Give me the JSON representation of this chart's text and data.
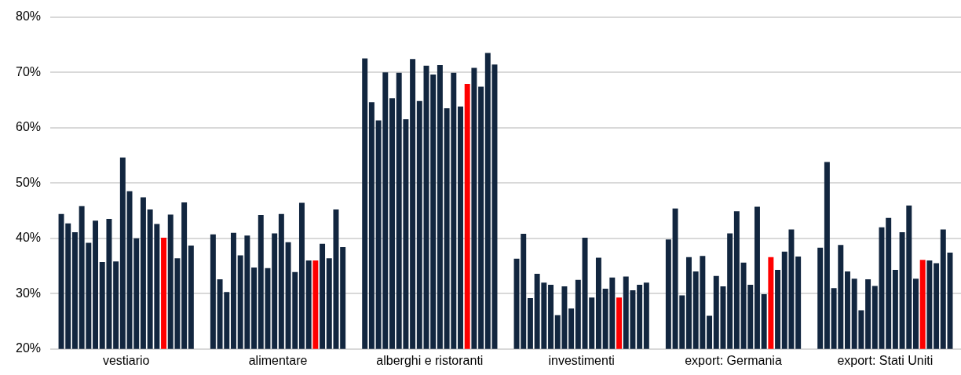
{
  "chart_data": {
    "type": "bar",
    "categories": [
      "vestiario",
      "alimentare",
      "alberghi e ristoranti",
      "investimenti",
      "export: Germania",
      "export: Stati Uniti"
    ],
    "series": [
      {
        "color": "#12263f",
        "values": [
          44.4,
          40.7,
          72.5,
          36.3,
          39.8,
          38.3
        ]
      },
      {
        "color": "#12263f",
        "values": [
          42.7,
          32.6,
          64.6,
          40.8,
          45.4,
          53.8
        ]
      },
      {
        "color": "#12263f",
        "values": [
          41.1,
          30.3,
          61.3,
          29.2,
          29.7,
          31.0
        ]
      },
      {
        "color": "#12263f",
        "values": [
          45.8,
          41.0,
          70.0,
          33.6,
          36.6,
          38.8
        ]
      },
      {
        "color": "#12263f",
        "values": [
          39.2,
          36.9,
          65.3,
          32.0,
          34.0,
          34.0
        ]
      },
      {
        "color": "#12263f",
        "values": [
          43.2,
          40.5,
          69.9,
          31.6,
          36.8,
          32.7
        ]
      },
      {
        "color": "#12263f",
        "values": [
          35.7,
          34.7,
          61.5,
          26.1,
          26.0,
          27.0
        ]
      },
      {
        "color": "#12263f",
        "values": [
          43.5,
          44.2,
          72.4,
          31.3,
          33.2,
          32.6
        ]
      },
      {
        "color": "#12263f",
        "values": [
          35.8,
          34.6,
          64.8,
          27.3,
          31.3,
          31.4
        ]
      },
      {
        "color": "#12263f",
        "values": [
          54.6,
          40.9,
          71.2,
          32.5,
          40.9,
          42.0
        ]
      },
      {
        "color": "#12263f",
        "values": [
          48.5,
          44.4,
          69.6,
          40.1,
          44.9,
          43.7
        ]
      },
      {
        "color": "#12263f",
        "values": [
          40.0,
          39.3,
          71.3,
          29.3,
          35.6,
          34.3
        ]
      },
      {
        "color": "#12263f",
        "values": [
          47.4,
          33.9,
          63.5,
          36.5,
          31.6,
          41.1
        ]
      },
      {
        "color": "#12263f",
        "values": [
          45.2,
          46.4,
          69.9,
          30.9,
          45.7,
          45.9
        ]
      },
      {
        "color": "#12263f",
        "values": [
          42.6,
          36.0,
          63.8,
          32.9,
          29.9,
          32.7
        ]
      },
      {
        "color": "#ff0000",
        "values": [
          40.1,
          36.0,
          67.9,
          29.3,
          36.6,
          36.1
        ]
      },
      {
        "color": "#12263f",
        "values": [
          44.3,
          39.0,
          70.8,
          33.1,
          34.3,
          36.0
        ]
      },
      {
        "color": "#12263f",
        "values": [
          36.4,
          36.4,
          67.4,
          30.6,
          37.6,
          35.5
        ]
      },
      {
        "color": "#12263f",
        "values": [
          46.5,
          45.2,
          73.5,
          31.6,
          41.6,
          41.6
        ]
      },
      {
        "color": "#12263f",
        "values": [
          38.7,
          38.4,
          71.4,
          32.0,
          36.7,
          37.4
        ]
      }
    ],
    "ylim": [
      20,
      80
    ],
    "yticks": [
      {
        "value": 20,
        "label": "20%"
      },
      {
        "value": 30,
        "label": "30%"
      },
      {
        "value": 40,
        "label": "40%"
      },
      {
        "value": 50,
        "label": "50%"
      },
      {
        "value": 60,
        "label": "60%"
      },
      {
        "value": 70,
        "label": "70%"
      },
      {
        "value": 80,
        "label": "80%"
      }
    ],
    "grid": "y",
    "legend": false
  }
}
